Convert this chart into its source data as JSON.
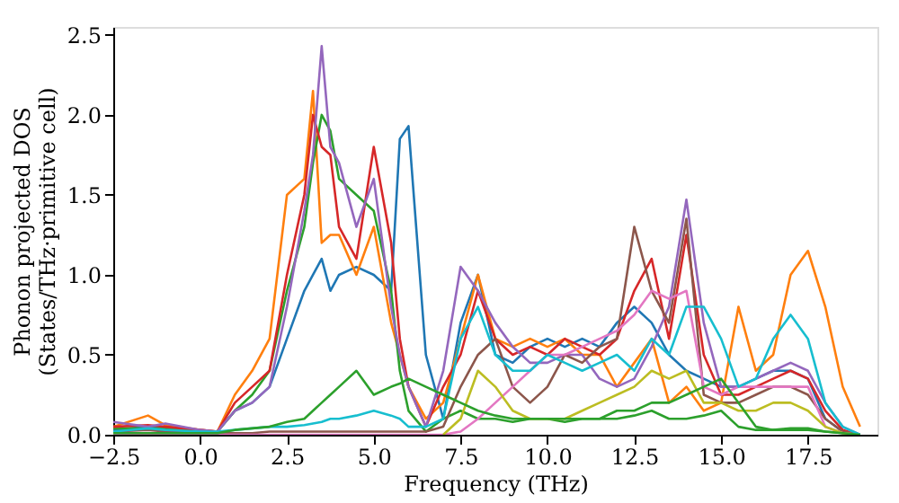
{
  "chart_data": {
    "type": "line",
    "xlabel": "Frequency (THz)",
    "ylabel": "Phonon projected DOS\n(States/THz·primitive cell)",
    "x": [
      -2.5,
      -1.5,
      -1,
      0,
      0.5,
      1,
      1.5,
      2,
      2.5,
      3,
      3.25,
      3.5,
      3.75,
      4,
      4.5,
      5,
      5.5,
      5.75,
      6,
      6.5,
      7,
      7.5,
      8,
      8.5,
      9,
      9.5,
      10,
      10.5,
      11,
      11.5,
      12,
      12.5,
      13,
      13.5,
      14,
      14.5,
      15,
      15.5,
      16,
      16.5,
      17,
      17.5,
      18,
      18.5,
      19
    ],
    "series": [
      {
        "color": "#1f77b4",
        "values": [
          0.03,
          0.05,
          0.04,
          0.02,
          0.02,
          0.15,
          0.2,
          0.3,
          0.6,
          0.9,
          1.0,
          1.1,
          0.9,
          1.0,
          1.05,
          1.0,
          0.9,
          1.85,
          1.93,
          0.5,
          0.1,
          0.7,
          1.0,
          0.5,
          0.45,
          0.55,
          0.6,
          0.55,
          0.6,
          0.55,
          0.7,
          0.8,
          0.7,
          0.5,
          0.4,
          0.35,
          0.3,
          0.3,
          0.35,
          0.4,
          0.4,
          0.35,
          0.1,
          0.02,
          0
        ]
      },
      {
        "color": "#ff7f0e",
        "values": [
          0.05,
          0.12,
          0.06,
          0.03,
          0.02,
          0.25,
          0.4,
          0.6,
          1.5,
          1.6,
          2.15,
          1.2,
          1.25,
          1.25,
          1.0,
          1.3,
          0.7,
          0.5,
          0.3,
          0.1,
          0.2,
          0.6,
          1.0,
          0.6,
          0.55,
          0.6,
          0.55,
          0.6,
          0.5,
          0.5,
          0.3,
          0.45,
          0.6,
          0.2,
          0.3,
          0.15,
          0.2,
          0.8,
          0.4,
          0.5,
          1.0,
          1.15,
          0.8,
          0.3,
          0.05
        ]
      },
      {
        "color": "#2ca02c",
        "values": [
          0.04,
          0.04,
          0.04,
          0.02,
          0.02,
          0.15,
          0.25,
          0.4,
          0.9,
          1.3,
          1.7,
          2.0,
          1.9,
          1.6,
          1.5,
          1.4,
          0.9,
          0.4,
          0.15,
          0.02,
          0.1,
          0.15,
          0.1,
          0.1,
          0.08,
          0.1,
          0.1,
          0.08,
          0.1,
          0.1,
          0.1,
          0.12,
          0.15,
          0.1,
          0.1,
          0.12,
          0.15,
          0.05,
          0.03,
          0.03,
          0.04,
          0.04,
          0.02,
          0.01,
          0
        ]
      },
      {
        "color": "#d62728",
        "values": [
          0.05,
          0.06,
          0.05,
          0.03,
          0.02,
          0.2,
          0.3,
          0.4,
          1.0,
          1.5,
          2.0,
          1.8,
          1.75,
          1.3,
          1.1,
          1.8,
          1.2,
          0.6,
          0.3,
          0.05,
          0.3,
          0.5,
          0.9,
          0.6,
          0.5,
          0.55,
          0.5,
          0.6,
          0.55,
          0.5,
          0.6,
          0.9,
          1.1,
          0.6,
          1.25,
          0.5,
          0.25,
          0.25,
          0.3,
          0.35,
          0.4,
          0.35,
          0.15,
          0.03,
          0
        ]
      },
      {
        "color": "#9467bd",
        "values": [
          0.08,
          0.05,
          0.07,
          0.03,
          0.02,
          0.15,
          0.2,
          0.3,
          0.8,
          1.4,
          1.75,
          2.43,
          1.8,
          1.7,
          1.3,
          1.6,
          0.8,
          0.5,
          0.3,
          0.05,
          0.4,
          1.05,
          0.9,
          0.7,
          0.55,
          0.45,
          0.45,
          0.5,
          0.5,
          0.35,
          0.3,
          0.35,
          0.55,
          0.8,
          1.47,
          0.7,
          0.3,
          0.3,
          0.35,
          0.4,
          0.45,
          0.4,
          0.2,
          0.05,
          0
        ]
      },
      {
        "color": "#8c564b",
        "values": [
          0.02,
          0.03,
          0.02,
          0.01,
          0.01,
          0.01,
          0.01,
          0.02,
          0.02,
          0.02,
          0.02,
          0.02,
          0.02,
          0.02,
          0.02,
          0.02,
          0.02,
          0.02,
          0.02,
          0.02,
          0.05,
          0.3,
          0.5,
          0.6,
          0.3,
          0.2,
          0.3,
          0.5,
          0.45,
          0.55,
          0.6,
          1.3,
          0.9,
          0.7,
          1.35,
          0.25,
          0.2,
          0.2,
          0.25,
          0.3,
          0.3,
          0.25,
          0.1,
          0.02,
          0
        ]
      },
      {
        "color": "#e377c2",
        "values": [
          0,
          0,
          0,
          0,
          0,
          0,
          0,
          0,
          0,
          0,
          0,
          0,
          0,
          0,
          0,
          0,
          0,
          0,
          0,
          0,
          0,
          0.02,
          0.1,
          0.2,
          0.3,
          0.4,
          0.5,
          0.5,
          0.55,
          0.6,
          0.65,
          0.75,
          0.9,
          0.85,
          0.9,
          0.3,
          0.25,
          0.3,
          0.3,
          0.3,
          0.3,
          0.3,
          0.05,
          0.01,
          0
        ]
      },
      {
        "color": "#bcbd22",
        "values": [
          null,
          null,
          null,
          null,
          null,
          null,
          null,
          null,
          null,
          null,
          null,
          null,
          null,
          null,
          null,
          null,
          null,
          null,
          null,
          null,
          0,
          0.1,
          0.4,
          0.3,
          0.15,
          0.1,
          0.1,
          0.1,
          0.15,
          0.2,
          0.25,
          0.3,
          0.4,
          0.35,
          0.4,
          0.2,
          0.2,
          0.15,
          0.15,
          0.2,
          0.2,
          0.15,
          0.05,
          0.01,
          0
        ]
      },
      {
        "color": "#17becf",
        "values": [
          0.02,
          0.04,
          0.03,
          0.02,
          0.02,
          0.03,
          0.04,
          0.05,
          0.05,
          0.06,
          0.07,
          0.08,
          0.1,
          0.1,
          0.12,
          0.15,
          0.12,
          0.1,
          0.05,
          0.05,
          0.1,
          0.6,
          0.8,
          0.5,
          0.4,
          0.4,
          0.5,
          0.45,
          0.4,
          0.45,
          0.5,
          0.4,
          0.6,
          0.5,
          0.8,
          0.8,
          0.6,
          0.3,
          0.35,
          0.6,
          0.75,
          0.6,
          0.2,
          0.05,
          0
        ]
      },
      {
        "color": "#2ca02c",
        "values": [
          0.01,
          0.01,
          0.01,
          0.01,
          0.01,
          0.03,
          0.04,
          0.05,
          0.08,
          0.1,
          0.15,
          0.2,
          0.25,
          0.3,
          0.4,
          0.25,
          0.3,
          0.32,
          0.35,
          0.3,
          0.25,
          0.2,
          0.15,
          0.12,
          0.1,
          0.1,
          0.1,
          0.1,
          0.1,
          0.1,
          0.15,
          0.15,
          0.2,
          0.2,
          0.25,
          0.3,
          0.35,
          0.2,
          0.05,
          0.03,
          0.03,
          0.03,
          0.02,
          0.01,
          0
        ]
      }
    ],
    "xlim": [
      -2.5,
      19.5
    ],
    "ylim": [
      0,
      2.55
    ],
    "xticks": [
      {
        "value": -2.5,
        "label": "−2.5"
      },
      {
        "value": 0,
        "label": "0.0"
      },
      2.5,
      {
        "value": 5,
        "label": "5.0"
      },
      7.5,
      {
        "value": 10,
        "label": "10.0"
      },
      12.5,
      {
        "value": 15,
        "label": "15.0"
      },
      17.5
    ],
    "yticks": [
      {
        "value": 0,
        "label": "0.0"
      },
      {
        "value": 0.5,
        "label": "0.5"
      },
      {
        "value": 1,
        "label": "1.0"
      },
      {
        "value": 1.5,
        "label": "1.5"
      },
      {
        "value": 2,
        "label": "2.0"
      },
      {
        "value": 2.5,
        "label": "2.5"
      }
    ],
    "grid": false,
    "legend": false,
    "line_style": "solid",
    "marker": "none"
  }
}
